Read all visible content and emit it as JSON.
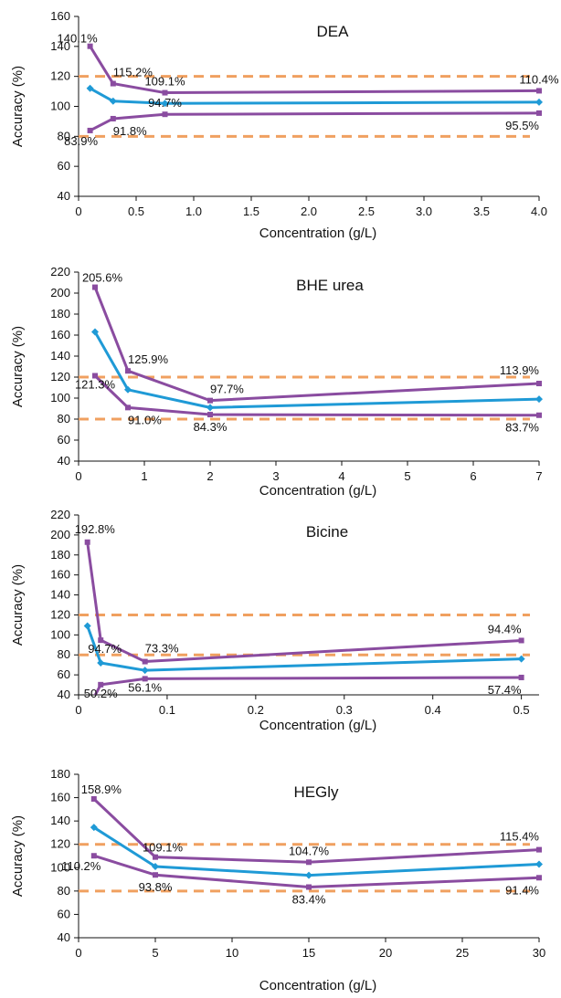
{
  "colors": {
    "bound": "#f0a060",
    "outer": "#8a4ca0",
    "mean": "#1f9ad6",
    "axis": "#111111"
  },
  "chart_data": [
    {
      "type": "line",
      "title": "DEA",
      "xlabel": "Concentration (g/L)",
      "ylabel": "Accuracy (%)",
      "xlim": [
        0,
        4.0
      ],
      "ylim": [
        40,
        160
      ],
      "xticks": [
        "0",
        "0.5",
        "1.0",
        "1.5",
        "2.0",
        "2.5",
        "3.0",
        "3.5",
        "4.0"
      ],
      "yticks": [
        "40",
        "60",
        "80",
        "100",
        "120",
        "140",
        "160"
      ],
      "reference_lines": [
        80,
        120
      ],
      "series": [
        {
          "role": "upper",
          "x": [
            0.1,
            0.3,
            0.75,
            4.0
          ],
          "values": [
            140.1,
            115.2,
            109.1,
            110.4
          ]
        },
        {
          "role": "mean",
          "x": [
            0.1,
            0.3,
            0.75,
            4.0
          ],
          "values": [
            112,
            103.5,
            102,
            102.8
          ]
        },
        {
          "role": "lower",
          "x": [
            0.1,
            0.3,
            0.75,
            4.0
          ],
          "values": [
            83.9,
            91.8,
            94.7,
            95.5
          ]
        }
      ],
      "annotations": [
        {
          "text": "140.1%",
          "x": 0.1,
          "y": 140.1
        },
        {
          "text": "115.2%",
          "x": 0.3,
          "y": 115.2
        },
        {
          "text": "109.1%",
          "x": 0.75,
          "y": 109.1
        },
        {
          "text": "110.4%",
          "x": 4.0,
          "y": 110.4
        },
        {
          "text": "83.9%",
          "x": 0.1,
          "y": 83.9
        },
        {
          "text": "91.8%",
          "x": 0.3,
          "y": 91.8
        },
        {
          "text": "94.7%",
          "x": 0.75,
          "y": 94.7
        },
        {
          "text": "95.5%",
          "x": 4.0,
          "y": 95.5
        }
      ]
    },
    {
      "type": "line",
      "title": "BHE urea",
      "xlabel": "Concentration (g/L)",
      "ylabel": "Accuracy (%)",
      "xlim": [
        0,
        7
      ],
      "ylim": [
        40,
        220
      ],
      "xticks": [
        "0",
        "1",
        "2",
        "3",
        "4",
        "5",
        "6",
        "7"
      ],
      "yticks": [
        "40",
        "60",
        "80",
        "100",
        "120",
        "140",
        "160",
        "180",
        "200",
        "220"
      ],
      "reference_lines": [
        80,
        120
      ],
      "series": [
        {
          "role": "upper",
          "x": [
            0.25,
            0.75,
            2,
            7
          ],
          "values": [
            205.6,
            125.9,
            97.7,
            113.9
          ]
        },
        {
          "role": "mean",
          "x": [
            0.25,
            0.75,
            2,
            7
          ],
          "values": [
            163,
            108,
            91,
            99
          ]
        },
        {
          "role": "lower",
          "x": [
            0.25,
            0.75,
            2,
            7
          ],
          "values": [
            121.3,
            91.0,
            84.3,
            83.7
          ]
        }
      ],
      "annotations": [
        {
          "text": "205.6%",
          "x": 0.25,
          "y": 205.6
        },
        {
          "text": "125.9%",
          "x": 0.75,
          "y": 125.9
        },
        {
          "text": "97.7%",
          "x": 2,
          "y": 97.7
        },
        {
          "text": "113.9%",
          "x": 7,
          "y": 113.9
        },
        {
          "text": "121.3%",
          "x": 0.25,
          "y": 121.3
        },
        {
          "text": "91.0%",
          "x": 0.75,
          "y": 91.0
        },
        {
          "text": "84.3%",
          "x": 2,
          "y": 84.3
        },
        {
          "text": "83.7%",
          "x": 7,
          "y": 83.7
        }
      ]
    },
    {
      "type": "line",
      "title": "Bicine",
      "xlabel": "Concentration (g/L)",
      "ylabel": "Accuracy (%)",
      "xlim": [
        0,
        0.52
      ],
      "ylim": [
        40,
        220
      ],
      "xticks": [
        "0",
        "0.1",
        "0.2",
        "0.3",
        "0.4",
        "0.5"
      ],
      "yticks": [
        "40",
        "60",
        "80",
        "100",
        "120",
        "140",
        "160",
        "180",
        "200",
        "220"
      ],
      "reference_lines": [
        80,
        120
      ],
      "series": [
        {
          "role": "upper",
          "x": [
            0.01,
            0.025,
            0.075,
            0.5
          ],
          "values": [
            192.8,
            94.7,
            73.3,
            94.4
          ]
        },
        {
          "role": "mean",
          "x": [
            0.01,
            0.025,
            0.075,
            0.5
          ],
          "values": [
            109,
            72,
            64.5,
            76
          ]
        },
        {
          "role": "lower",
          "x": [
            0.01,
            0.025,
            0.075,
            0.5
          ],
          "values": [
            25,
            50.2,
            56.1,
            57.4
          ]
        }
      ],
      "annotations": [
        {
          "text": "192.8%",
          "x": 0.01,
          "y": 192.8
        },
        {
          "text": "94.7%",
          "x": 0.025,
          "y": 94.7
        },
        {
          "text": "73.3%",
          "x": 0.075,
          "y": 73.3
        },
        {
          "text": "94.4%",
          "x": 0.5,
          "y": 94.4
        },
        {
          "text": "50.2%",
          "x": 0.025,
          "y": 50.2
        },
        {
          "text": "56.1%",
          "x": 0.075,
          "y": 56.1
        },
        {
          "text": "57.4%",
          "x": 0.5,
          "y": 57.4
        }
      ]
    },
    {
      "type": "line",
      "title": "HEGly",
      "xlabel": "Concentration (g/L)",
      "ylabel": "Accuracy (%)",
      "xlim": [
        0,
        30
      ],
      "ylim": [
        40,
        180
      ],
      "xticks": [
        "0",
        "5",
        "10",
        "15",
        "20",
        "25",
        "30"
      ],
      "yticks": [
        "40",
        "60",
        "80",
        "100",
        "120",
        "140",
        "160",
        "180"
      ],
      "reference_lines": [
        80,
        120
      ],
      "series": [
        {
          "role": "upper",
          "x": [
            1,
            5,
            15,
            30
          ],
          "values": [
            158.9,
            109.1,
            104.7,
            115.4
          ]
        },
        {
          "role": "mean",
          "x": [
            1,
            5,
            15,
            30
          ],
          "values": [
            134.5,
            101,
            93.5,
            103
          ]
        },
        {
          "role": "lower",
          "x": [
            1,
            5,
            15,
            30
          ],
          "values": [
            110.2,
            93.8,
            83.4,
            91.4
          ]
        }
      ],
      "annotations": [
        {
          "text": "158.9%",
          "x": 1,
          "y": 158.9
        },
        {
          "text": "109.1%",
          "x": 5,
          "y": 109.1
        },
        {
          "text": "104.7%",
          "x": 15,
          "y": 104.7
        },
        {
          "text": "115.4%",
          "x": 30,
          "y": 115.4
        },
        {
          "text": "110.2%",
          "x": 1,
          "y": 110.2
        },
        {
          "text": "93.8%",
          "x": 5,
          "y": 93.8
        },
        {
          "text": "83.4%",
          "x": 15,
          "y": 83.4
        },
        {
          "text": "91.4%",
          "x": 30,
          "y": 91.4
        }
      ]
    }
  ]
}
